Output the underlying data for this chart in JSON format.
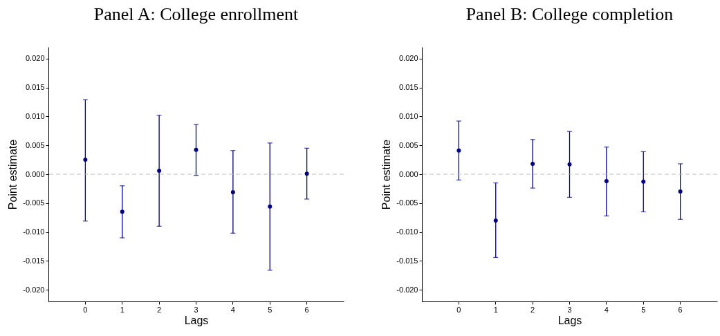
{
  "chart_data": [
    {
      "type": "scatter",
      "title": "Panel A: College enrollment",
      "xlabel": "Lags",
      "ylabel": "Point estimate",
      "categories": [
        "0",
        "1",
        "2",
        "3",
        "4",
        "5",
        "6"
      ],
      "color": "#000080",
      "marker": "circle",
      "grid": false,
      "values": [
        0.0025,
        -0.0065,
        0.0006,
        0.0042,
        -0.0031,
        -0.0056,
        0.0001
      ],
      "errors": [
        [
          -0.0081,
          0.0129
        ],
        [
          -0.011,
          -0.002
        ],
        [
          -0.009,
          0.0102
        ],
        [
          -0.0002,
          0.0086
        ],
        [
          -0.0102,
          0.0041
        ],
        [
          -0.0166,
          0.0054
        ],
        [
          -0.0043,
          0.0045
        ]
      ],
      "ylim": [
        -0.022,
        0.022
      ],
      "yticks": [
        {
          "value": -0.02,
          "label": "-0.020"
        },
        {
          "value": -0.015,
          "label": "-0.015"
        },
        {
          "value": -0.01,
          "label": "-0.010"
        },
        {
          "value": -0.005,
          "label": "-0.005"
        },
        {
          "value": 0,
          "label": "0.000"
        },
        {
          "value": 0.005,
          "label": "0.005"
        },
        {
          "value": 0.01,
          "label": "0.010"
        },
        {
          "value": 0.015,
          "label": "0.015"
        },
        {
          "value": 0.02,
          "label": "0.020"
        }
      ],
      "ref_lines": [
        {
          "axis": "y",
          "value": 0,
          "color": "#bebebe",
          "line_style": "dashed"
        }
      ]
    },
    {
      "type": "scatter",
      "title": "Panel B: College completion",
      "xlabel": "Lags",
      "ylabel": "Point estimate",
      "categories": [
        "0",
        "1",
        "2",
        "3",
        "4",
        "5",
        "6"
      ],
      "color": "#000080",
      "marker": "circle",
      "grid": false,
      "values": [
        0.0041,
        -0.008,
        0.0018,
        0.0017,
        -0.0012,
        -0.0013,
        -0.003
      ],
      "errors": [
        [
          -0.001,
          0.0092
        ],
        [
          -0.0144,
          -0.0015
        ],
        [
          -0.0024,
          0.006
        ],
        [
          -0.004,
          0.0074
        ],
        [
          -0.0072,
          0.0047
        ],
        [
          -0.0065,
          0.0039
        ],
        [
          -0.0078,
          0.0018
        ]
      ],
      "ylim": [
        -0.022,
        0.022
      ],
      "yticks": [
        {
          "value": -0.02,
          "label": "-0.020"
        },
        {
          "value": -0.015,
          "label": "-0.015"
        },
        {
          "value": -0.01,
          "label": "-0.010"
        },
        {
          "value": -0.005,
          "label": "-0.005"
        },
        {
          "value": 0,
          "label": "0.000"
        },
        {
          "value": 0.005,
          "label": "0.005"
        },
        {
          "value": 0.01,
          "label": "0.010"
        },
        {
          "value": 0.015,
          "label": "0.015"
        },
        {
          "value": 0.02,
          "label": "0.020"
        }
      ],
      "ref_lines": [
        {
          "axis": "y",
          "value": 0,
          "color": "#bebebe",
          "line_style": "dashed"
        }
      ]
    }
  ]
}
